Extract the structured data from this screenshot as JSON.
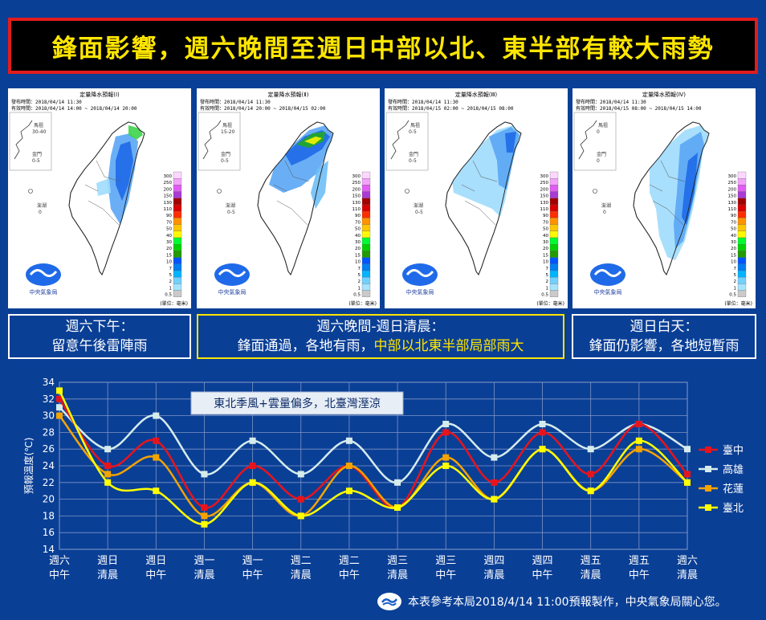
{
  "banner": {
    "title": "鋒面影響，週六晚間至週日中部以北、東半部有較大雨勢"
  },
  "maps": [
    {
      "header": "定量降水預報(Ⅰ)",
      "issued": "發布時間：2018/04/14 11:30",
      "valid": "有效時間：2018/04/14 14:00 ~ 2018/04/14 20:00",
      "mazu": "馬祖",
      "mazu_val": "30-40",
      "kinmen": "金門",
      "kinmen_val": "0-5",
      "penghu": "澎湖",
      "penghu_val": "0",
      "unit": "(單位：毫米)",
      "agency": "中央氣象局",
      "coverage": "central"
    },
    {
      "header": "定量降水預報(Ⅱ)",
      "issued": "發布時間：2018/04/14 11:30",
      "valid": "有效時間：2018/04/14 20:00 ~ 2018/04/15 02:00",
      "mazu": "馬祖",
      "mazu_val": "15-20",
      "kinmen": "金門",
      "kinmen_val": "0-5",
      "penghu": "澎湖",
      "penghu_val": "0-5",
      "unit": "(單位：毫米)",
      "agency": "中央氣象局",
      "coverage": "north"
    },
    {
      "header": "定量降水預報(Ⅲ)",
      "issued": "發布時間：2018/04/14 11:30",
      "valid": "有效時間：2018/04/15 02:00 ~ 2018/04/15 08:00",
      "mazu": "馬祖",
      "mazu_val": "0-5",
      "kinmen": "金門",
      "kinmen_val": "0-5",
      "penghu": "澎湖",
      "penghu_val": "0-5",
      "unit": "(單位：毫米)",
      "agency": "中央氣象局",
      "coverage": "east"
    },
    {
      "header": "定量降水預報(Ⅳ)",
      "issued": "發布時間：2018/04/14 11:30",
      "valid": "有效時間：2018/04/15 08:00 ~ 2018/04/15 14:00",
      "mazu": "馬祖",
      "mazu_val": "0",
      "kinmen": "金門",
      "kinmen_val": "0",
      "penghu": "澎湖",
      "penghu_val": "0",
      "unit": "(單位：毫米)",
      "agency": "中央氣象局",
      "coverage": "east2"
    }
  ],
  "legend_scale": {
    "labels": [
      "300",
      "250",
      "200",
      "150",
      "130",
      "110",
      "90",
      "70",
      "50",
      "40",
      "30",
      "20",
      "15",
      "10",
      "7",
      "5",
      "2",
      "1",
      "0.5"
    ],
    "colors": [
      "#fdd7fe",
      "#f3a3f9",
      "#e15cf3",
      "#a93bd3",
      "#a30000",
      "#d80000",
      "#ff2d00",
      "#ff9200",
      "#fcc600",
      "#fffa00",
      "#00fb30",
      "#00d100",
      "#229b00",
      "#0055ff",
      "#007ef2",
      "#00b4ff",
      "#70d1ff",
      "#a5e4ff",
      "#cacaca"
    ]
  },
  "captions": [
    {
      "line1": "週六下午：",
      "line2": "留意午後雷陣雨",
      "line2_hl": ""
    },
    {
      "line1": "週六晚間-週日清晨：",
      "line2": "鋒面通過，各地有雨，",
      "line2_hl": "中部以北東半部局部雨大"
    },
    {
      "line1": "週日白天：",
      "line2": "鋒面仍影響，各地短暫雨",
      "line2_hl": ""
    }
  ],
  "chart_data": {
    "type": "line",
    "ylabel": "預報溫度(℃)",
    "ylim": [
      14,
      34
    ],
    "yticks": [
      14,
      16,
      18,
      20,
      22,
      24,
      26,
      28,
      30,
      32,
      34
    ],
    "grid": true,
    "legend_position": "right",
    "annotation": "東北季風+雲量偏多，北臺灣溼涼",
    "categories": [
      [
        "週六",
        "中午"
      ],
      [
        "週日",
        "清晨"
      ],
      [
        "週日",
        "中午"
      ],
      [
        "週一",
        "清晨"
      ],
      [
        "週一",
        "中午"
      ],
      [
        "週二",
        "清晨"
      ],
      [
        "週二",
        "中午"
      ],
      [
        "週三",
        "清晨"
      ],
      [
        "週三",
        "中午"
      ],
      [
        "週四",
        "清晨"
      ],
      [
        "週四",
        "中午"
      ],
      [
        "週五",
        "清晨"
      ],
      [
        "週五",
        "中午"
      ],
      [
        "週六",
        "清晨"
      ]
    ],
    "series": [
      {
        "name": "臺中",
        "color": "#e8141c",
        "values": [
          32,
          24,
          27,
          19,
          24,
          20,
          24,
          19,
          28,
          22,
          28,
          23,
          29,
          23
        ]
      },
      {
        "name": "高雄",
        "color": "#d6ecec",
        "values": [
          31,
          26,
          30,
          23,
          27,
          23,
          27,
          22,
          29,
          25,
          29,
          26,
          29,
          26
        ]
      },
      {
        "name": "花蓮",
        "color": "#f5a300",
        "values": [
          30,
          23,
          25,
          18,
          22,
          18,
          24,
          19,
          25,
          20,
          26,
          21,
          26,
          22
        ]
      },
      {
        "name": "臺北",
        "color": "#ffff00",
        "values": [
          33,
          22,
          21,
          17,
          22,
          18,
          21,
          19,
          24,
          20,
          26,
          21,
          27,
          22
        ]
      }
    ]
  },
  "footer": {
    "text": "本表參考本局2018/4/14 11:00預報製作，中央氣象局關心您。"
  }
}
